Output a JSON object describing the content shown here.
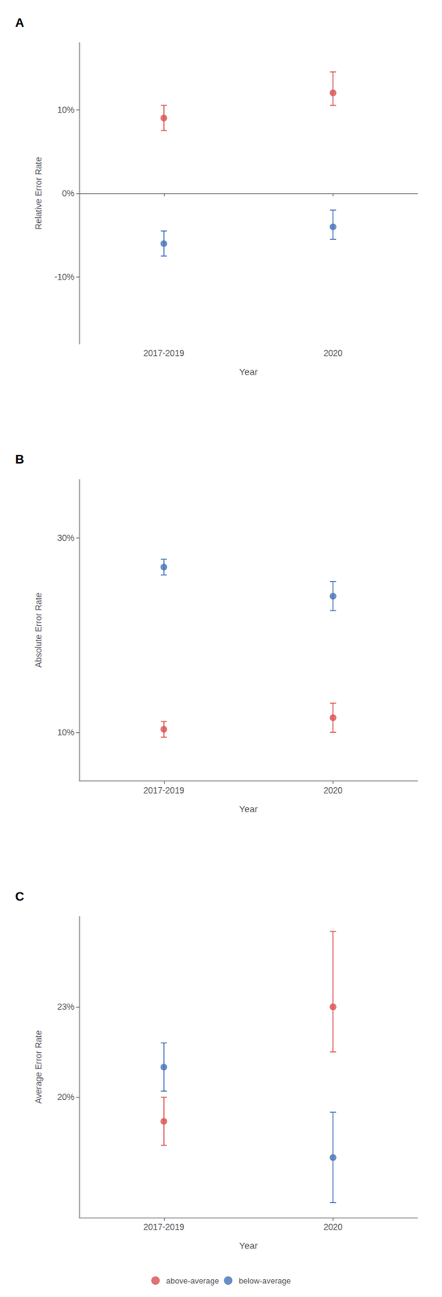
{
  "chart_data": [
    {
      "type": "scatter",
      "title": "A",
      "xlabel": "Year",
      "ylabel": "Relative Error Rate",
      "categories": [
        "2017-2019",
        "2020"
      ],
      "series": [
        {
          "name": "above-average",
          "color": "#D94F4F",
          "values": [
            9.0,
            12.0
          ],
          "yerr_lo": [
            1.5,
            1.5
          ],
          "yerr_hi": [
            1.5,
            2.5
          ]
        },
        {
          "name": "below-average",
          "color": "#4472B8",
          "values": [
            -6.0,
            -4.0
          ],
          "yerr_lo": [
            1.5,
            1.5
          ],
          "yerr_hi": [
            1.5,
            2.0
          ]
        }
      ],
      "ylim": [
        -18,
        18
      ],
      "yticks": [
        {
          "value": -10,
          "label": "-10%"
        },
        {
          "value": 0,
          "label": "0%"
        },
        {
          "value": 10,
          "label": "10%"
        }
      ],
      "grid": false,
      "marker": "circle"
    },
    {
      "type": "scatter",
      "title": "B",
      "xlabel": "Year",
      "ylabel": "Absolute Error Rate",
      "categories": [
        "2017-2019",
        "2020"
      ],
      "series": [
        {
          "name": "above-average",
          "color": "#D94F4F",
          "values": [
            10.3,
            11.5
          ],
          "yerr_lo": [
            0.8,
            1.5
          ],
          "yerr_hi": [
            0.8,
            1.5
          ]
        },
        {
          "name": "below-average",
          "color": "#4472B8",
          "values": [
            27.0,
            24.0
          ],
          "yerr_lo": [
            0.8,
            1.5
          ],
          "yerr_hi": [
            0.8,
            1.5
          ]
        }
      ],
      "ylim": [
        5,
        36
      ],
      "yticks": [
        {
          "value": 10,
          "label": "10%"
        },
        {
          "value": 30,
          "label": "30%"
        }
      ],
      "grid": false,
      "marker": "circle"
    },
    {
      "type": "scatter",
      "title": "C",
      "xlabel": "Year",
      "ylabel": "Average Error Rate",
      "categories": [
        "2017-2019",
        "2020"
      ],
      "series": [
        {
          "name": "above-average",
          "color": "#D94F4F",
          "values": [
            19.2,
            23.0
          ],
          "yerr_lo": [
            0.8,
            1.5
          ],
          "yerr_hi": [
            0.8,
            2.5
          ]
        },
        {
          "name": "below-average",
          "color": "#4472B8",
          "values": [
            21.0,
            18.0
          ],
          "yerr_lo": [
            0.8,
            1.5
          ],
          "yerr_hi": [
            0.8,
            1.5
          ]
        }
      ],
      "ylim": [
        16,
        26
      ],
      "yticks": [
        {
          "value": 20,
          "label": "20%"
        },
        {
          "value": 23,
          "label": "23%"
        }
      ],
      "grid": false,
      "marker": "circle",
      "legend": "bottom"
    }
  ]
}
